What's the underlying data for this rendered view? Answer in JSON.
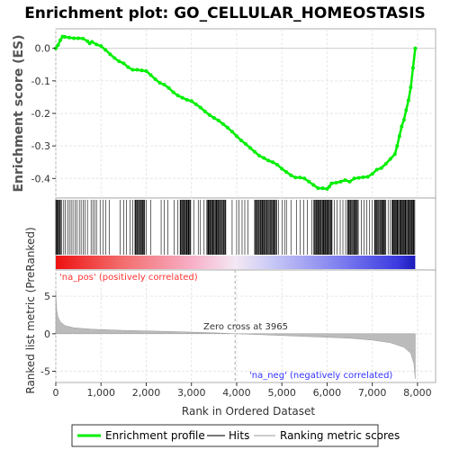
{
  "chart_data": {
    "type": "line",
    "title": "Enrichment plot: GO_CELLULAR_HOMEOSTASIS",
    "ylabel_top": "Enrichment score (ES)",
    "ylabel_bottom": "Ranked list metric (PreRanked)",
    "xlabel": "Rank in Ordered Dataset",
    "xlim": [
      0,
      8400
    ],
    "es_ylim": [
      -0.46,
      0.06
    ],
    "metric_ylim": [
      -6.5,
      8.5
    ],
    "es_yticks": [
      0.0,
      -0.1,
      -0.2,
      -0.3,
      -0.4
    ],
    "es_ytick_labels": [
      "0.0",
      "-0.1",
      "-0.2",
      "-0.3",
      "-0.4"
    ],
    "metric_yticks": [
      5,
      0,
      -5
    ],
    "metric_ytick_labels": [
      "5",
      "0",
      "-5"
    ],
    "xticks": [
      0,
      1000,
      2000,
      3000,
      4000,
      5000,
      6000,
      7000,
      8000
    ],
    "xtick_labels": [
      "0",
      "1,000",
      "2,000",
      "3,000",
      "4,000",
      "5,000",
      "6,000",
      "7,000",
      "8,000"
    ],
    "zero_cross_label": "Zero cross at 3965",
    "zero_cross": 3965,
    "pos_label": "'na_pos' (positively correlated)",
    "neg_label": "'na_neg' (negatively correlated)",
    "n_genes": 7950,
    "es_curve": {
      "x": [
        0,
        50,
        100,
        150,
        200,
        300,
        400,
        500,
        600,
        700,
        750,
        800,
        900,
        1000,
        1100,
        1200,
        1300,
        1400,
        1500,
        1600,
        1700,
        1800,
        1900,
        2000,
        2100,
        2200,
        2300,
        2400,
        2500,
        2600,
        2700,
        2800,
        2900,
        3000,
        3100,
        3200,
        3300,
        3400,
        3500,
        3600,
        3700,
        3800,
        3900,
        4000,
        4100,
        4200,
        4300,
        4400,
        4500,
        4600,
        4700,
        4800,
        4900,
        5000,
        5100,
        5200,
        5300,
        5400,
        5500,
        5600,
        5700,
        5800,
        5900,
        6000,
        6050,
        6100,
        6200,
        6300,
        6400,
        6500,
        6600,
        6700,
        6800,
        6900,
        7000,
        7100,
        7200,
        7300,
        7400,
        7500,
        7550,
        7600,
        7650,
        7700,
        7750,
        7800,
        7850,
        7900,
        7950
      ],
      "y": [
        0.0,
        0.01,
        0.025,
        0.036,
        0.035,
        0.033,
        0.031,
        0.031,
        0.03,
        0.022,
        0.015,
        0.02,
        0.012,
        0.007,
        -0.005,
        -0.018,
        -0.03,
        -0.04,
        -0.046,
        -0.058,
        -0.066,
        -0.066,
        -0.068,
        -0.07,
        -0.082,
        -0.095,
        -0.106,
        -0.112,
        -0.122,
        -0.135,
        -0.145,
        -0.152,
        -0.158,
        -0.162,
        -0.172,
        -0.182,
        -0.194,
        -0.205,
        -0.214,
        -0.222,
        -0.233,
        -0.244,
        -0.256,
        -0.27,
        -0.283,
        -0.294,
        -0.306,
        -0.318,
        -0.33,
        -0.337,
        -0.345,
        -0.35,
        -0.358,
        -0.37,
        -0.38,
        -0.39,
        -0.397,
        -0.397,
        -0.4,
        -0.41,
        -0.42,
        -0.43,
        -0.43,
        -0.432,
        -0.425,
        -0.415,
        -0.413,
        -0.41,
        -0.405,
        -0.41,
        -0.4,
        -0.398,
        -0.396,
        -0.395,
        -0.386,
        -0.373,
        -0.368,
        -0.355,
        -0.34,
        -0.325,
        -0.3,
        -0.27,
        -0.24,
        -0.22,
        -0.19,
        -0.16,
        -0.12,
        -0.06,
        0.0
      ]
    },
    "hits_dense_ranges": [
      [
        0,
        120
      ],
      [
        1750,
        1980
      ],
      [
        2750,
        3000
      ],
      [
        3350,
        3750
      ],
      [
        4400,
        4900
      ],
      [
        5700,
        6100
      ],
      [
        6450,
        6700
      ],
      [
        7050,
        7300
      ],
      [
        7450,
        7950
      ]
    ],
    "hit_ranks": [
      25,
      60,
      95,
      130,
      175,
      210,
      260,
      300,
      340,
      380,
      430,
      470,
      520,
      560,
      610,
      650,
      700,
      780,
      820,
      860,
      900,
      980,
      1050,
      1100,
      1180,
      1420,
      1500,
      1560,
      1640,
      1700,
      1760,
      1800,
      1840,
      1880,
      1920,
      1950,
      2000,
      2100,
      2330,
      2400,
      2480,
      2620,
      2700,
      2760,
      2800,
      2830,
      2870,
      2900,
      2940,
      2980,
      3050,
      3150,
      3200,
      3280,
      3340,
      3380,
      3410,
      3440,
      3470,
      3500,
      3530,
      3560,
      3600,
      3640,
      3680,
      3720,
      3760,
      3900,
      4000,
      4050,
      4120,
      4180,
      4250,
      4400,
      4450,
      4490,
      4530,
      4570,
      4610,
      4660,
      4700,
      4760,
      4820,
      4880,
      4930,
      5010,
      5060,
      5100,
      5200,
      5320,
      5400,
      5480,
      5560,
      5660,
      5720,
      5760,
      5800,
      5840,
      5870,
      5900,
      5930,
      5960,
      5990,
      6020,
      6050,
      6080,
      6110,
      6160,
      6220,
      6290,
      6350,
      6410,
      6470,
      6510,
      6550,
      6600,
      6640,
      6690,
      6760,
      6820,
      6880,
      6940,
      7000,
      7060,
      7100,
      7140,
      7180,
      7220,
      7260,
      7300,
      7350,
      7400,
      7430,
      7460,
      7490,
      7520,
      7550,
      7580,
      7610,
      7640,
      7670,
      7700,
      7730,
      7760,
      7790,
      7820,
      7850,
      7880,
      7910,
      7940
    ],
    "metric_curve": {
      "x": [
        0,
        20,
        50,
        100,
        200,
        400,
        800,
        1500,
        2500,
        3500,
        3965,
        4500,
        5500,
        6500,
        7000,
        7400,
        7700,
        7850,
        7920,
        7950
      ],
      "y": [
        5.5,
        3.2,
        2.2,
        1.6,
        1.1,
        0.8,
        0.6,
        0.45,
        0.3,
        0.12,
        0.0,
        -0.12,
        -0.35,
        -0.6,
        -0.85,
        -1.2,
        -1.8,
        -2.6,
        -4.0,
        -6.0
      ]
    },
    "legend": {
      "items": [
        {
          "label": "Enrichment profile",
          "color": "#00ee00"
        },
        {
          "label": "Hits",
          "color": "#777777"
        },
        {
          "label": "Ranking metric scores",
          "color": "#cccccc"
        }
      ]
    },
    "colors": {
      "es": "#00ee00",
      "hits": "#000000",
      "metric_fill": "#bbbbbb",
      "pos_label": "#ff3333",
      "neg_label": "#3333ff",
      "grid": "#e6e6e6"
    }
  }
}
